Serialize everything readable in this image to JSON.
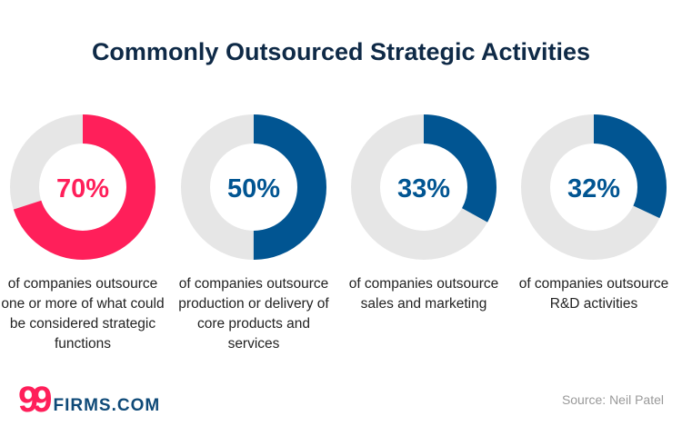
{
  "chart_data": [
    {
      "type": "pie",
      "style": "donut",
      "value": 70,
      "label": "70%",
      "description": "of companies outsource one or more of what could be considered strategic functions",
      "color": "#ff1f5a",
      "remainder_color": "#e6e6e6"
    },
    {
      "type": "pie",
      "style": "donut",
      "value": 50,
      "label": "50%",
      "description": "of companies outsource production or delivery of core products and services",
      "color": "#015592",
      "remainder_color": "#e6e6e6"
    },
    {
      "type": "pie",
      "style": "donut",
      "value": 33,
      "label": "33%",
      "description": "of companies outsource sales and marketing",
      "color": "#015592",
      "remainder_color": "#e6e6e6"
    },
    {
      "type": "pie",
      "style": "donut",
      "value": 32,
      "label": "32%",
      "description": "of companies outsource R&D activities",
      "color": "#015592",
      "remainder_color": "#e6e6e6"
    }
  ],
  "title": "Commonly Outsourced Strategic Activities",
  "logo": {
    "mark": "99",
    "text": "FIRMS.COM"
  },
  "source": "Source: Neil Patel"
}
